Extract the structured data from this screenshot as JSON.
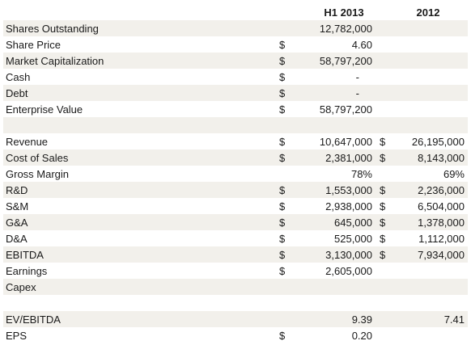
{
  "header": {
    "col1": "H1 2013",
    "col2": "2012"
  },
  "rows": [
    {
      "label": "Shares Outstanding",
      "d1": "",
      "v1": "12,782,000",
      "d2": "",
      "v2": ""
    },
    {
      "label": "Share Price",
      "d1": "$",
      "v1": "4.60",
      "d2": "",
      "v2": ""
    },
    {
      "label": "Market Capitalization",
      "d1": "$",
      "v1": "58,797,200",
      "d2": "",
      "v2": ""
    },
    {
      "label": "Cash",
      "d1": "$",
      "v1": "-",
      "d2": "",
      "v2": ""
    },
    {
      "label": "Debt",
      "d1": "$",
      "v1": "-",
      "d2": "",
      "v2": ""
    },
    {
      "label": "Enterprise Value",
      "d1": "$",
      "v1": "58,797,200",
      "d2": "",
      "v2": ""
    },
    {
      "label": "",
      "d1": "",
      "v1": "",
      "d2": "",
      "v2": ""
    },
    {
      "label": "Revenue",
      "d1": "$",
      "v1": "10,647,000",
      "d2": "$",
      "v2": "26,195,000"
    },
    {
      "label": "Cost of Sales",
      "d1": "$",
      "v1": "2,381,000",
      "d2": "$",
      "v2": "8,143,000"
    },
    {
      "label": "Gross Margin",
      "d1": "",
      "v1": "78%",
      "d2": "",
      "v2": "69%"
    },
    {
      "label": "R&D",
      "d1": "$",
      "v1": "1,553,000",
      "d2": "$",
      "v2": "2,236,000"
    },
    {
      "label": "S&M",
      "d1": "$",
      "v1": "2,938,000",
      "d2": "$",
      "v2": "6,504,000"
    },
    {
      "label": "G&A",
      "d1": "$",
      "v1": "645,000",
      "d2": "$",
      "v2": "1,378,000"
    },
    {
      "label": "D&A",
      "d1": "$",
      "v1": "525,000",
      "d2": "$",
      "v2": "1,112,000"
    },
    {
      "label": "EBITDA",
      "d1": "$",
      "v1": "3,130,000",
      "d2": "$",
      "v2": "7,934,000"
    },
    {
      "label": "Earnings",
      "d1": "$",
      "v1": "2,605,000",
      "d2": "",
      "v2": ""
    },
    {
      "label": "Capex",
      "d1": "",
      "v1": "",
      "d2": "",
      "v2": ""
    },
    {
      "label": "",
      "d1": "",
      "v1": "",
      "d2": "",
      "v2": ""
    },
    {
      "label": "EV/EBITDA",
      "d1": "",
      "v1": "9.39",
      "d2": "",
      "v2": "7.41"
    },
    {
      "label": "EPS",
      "d1": "$",
      "v1": "0.20",
      "d2": "",
      "v2": ""
    }
  ]
}
